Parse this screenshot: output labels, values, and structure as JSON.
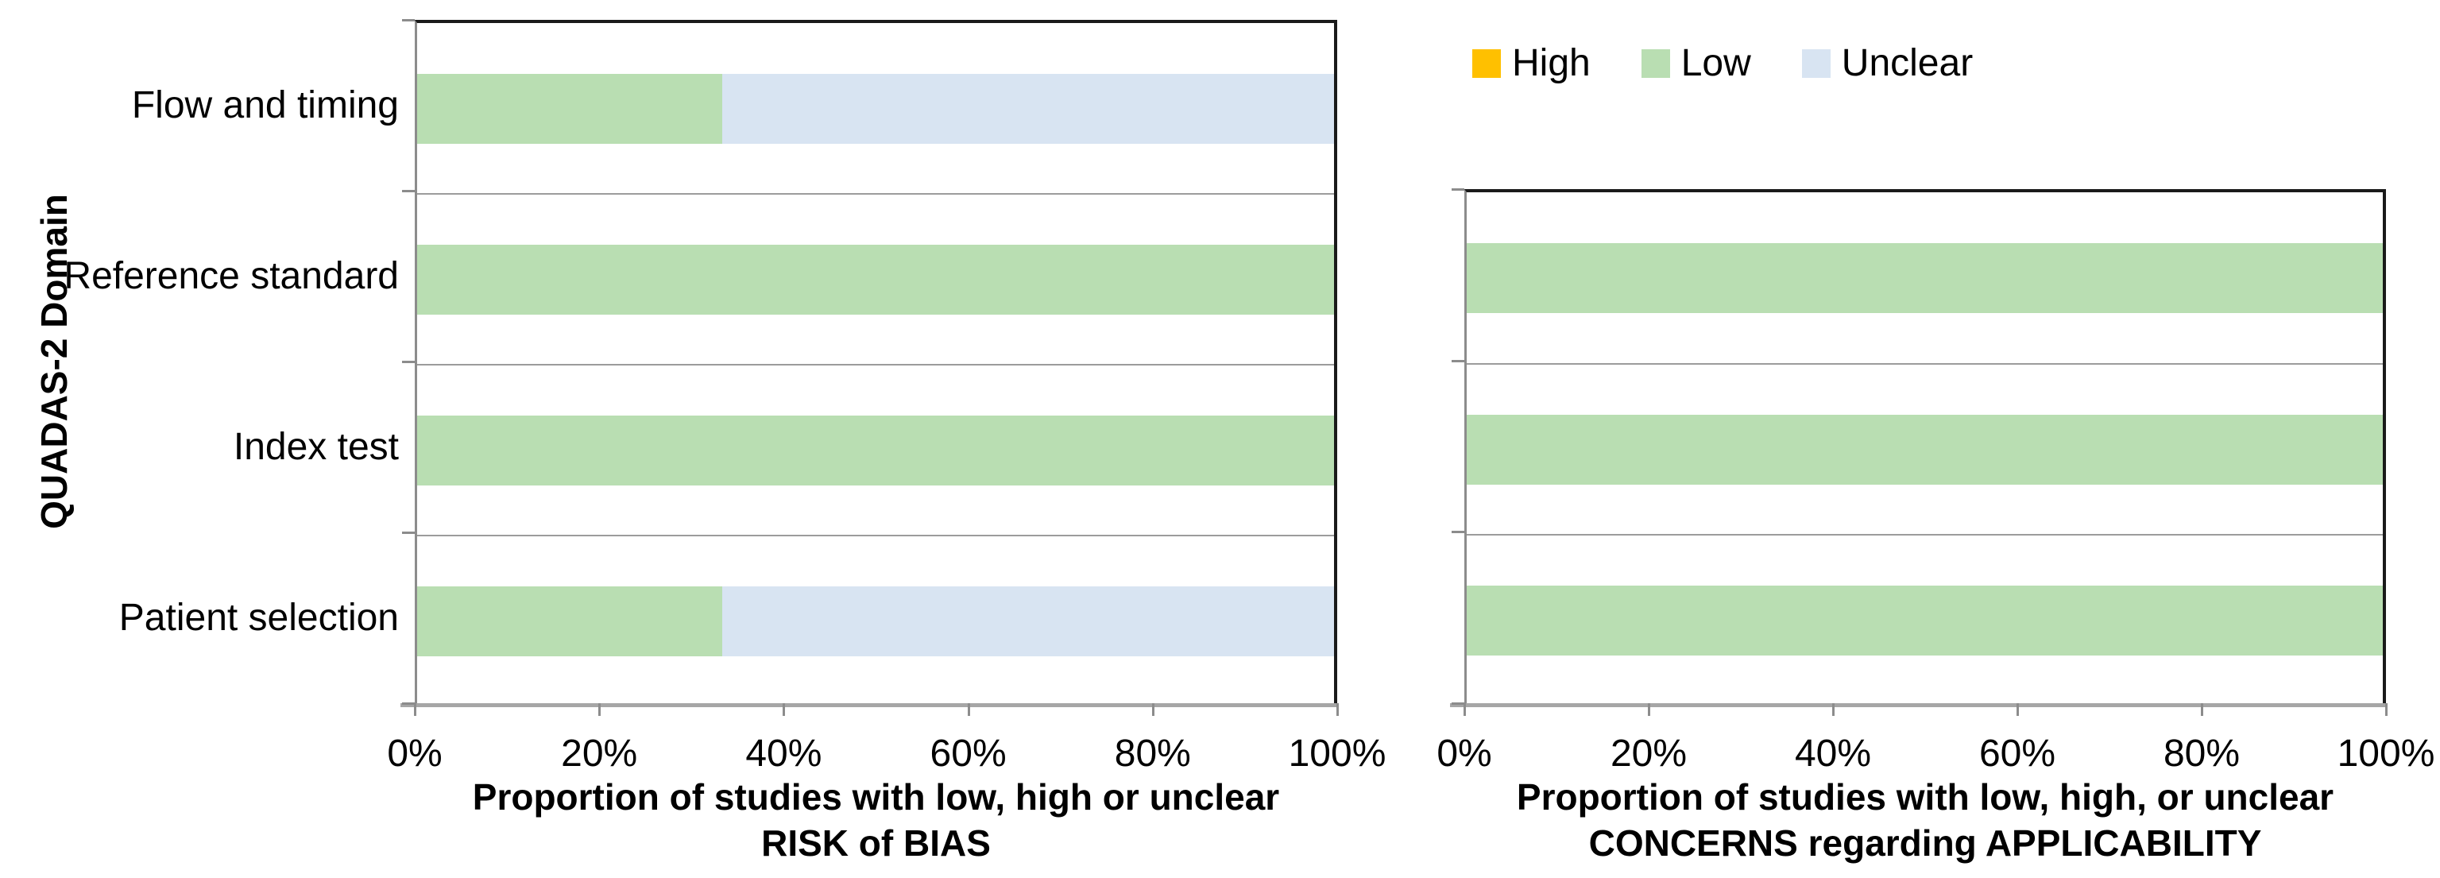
{
  "palette": {
    "high": "#FFC000",
    "low": "#B9DEB2",
    "unclear": "#D8E4F2",
    "axis_line": "#A6A6A6",
    "tick": "#8C8C8C",
    "gridline": "#9C9C9C",
    "plot_border_dark": "#1A1A1A",
    "plot_border_light": "#8C8C8C",
    "text": "#000000",
    "background": "#FFFFFF"
  },
  "legend": {
    "position": "top-center-right",
    "items": [
      {
        "key": "high",
        "label": "High"
      },
      {
        "key": "low",
        "label": "Low"
      },
      {
        "key": "unclear",
        "label": "Unclear"
      }
    ]
  },
  "chart_data": [
    {
      "type": "bar",
      "orientation": "horizontal",
      "stacked": true,
      "title": "",
      "xlabel_lines": [
        "Proportion of studies with low, high or unclear",
        "RISK of BIAS"
      ],
      "ylabel": "QUADAS-2 Domain",
      "categories_top_to_bottom": [
        "Flow and timing",
        "Reference standard",
        "Index test",
        "Patient selection"
      ],
      "x_tick_labels": [
        "0%",
        "20%",
        "40%",
        "60%",
        "80%",
        "100%"
      ],
      "xlim_percent": [
        0,
        100
      ],
      "grid": "horizontal-row-separators",
      "series": [
        {
          "name": "High",
          "key": "high",
          "values_percent": [
            0,
            0,
            0,
            0
          ]
        },
        {
          "name": "Low",
          "key": "low",
          "values_percent": [
            33.3,
            100,
            100,
            33.3
          ]
        },
        {
          "name": "Unclear",
          "key": "unclear",
          "values_percent": [
            66.7,
            0,
            0,
            66.7
          ]
        }
      ]
    },
    {
      "type": "bar",
      "orientation": "horizontal",
      "stacked": true,
      "title": "",
      "xlabel_lines": [
        "Proportion of studies with low, high, or unclear",
        "CONCERNS regarding APPLICABILITY"
      ],
      "ylabel": "",
      "categories_top_to_bottom": [
        "Reference standard",
        "Index test",
        "Patient selection"
      ],
      "x_tick_labels": [
        "0%",
        "20%",
        "40%",
        "60%",
        "80%",
        "100%"
      ],
      "xlim_percent": [
        0,
        100
      ],
      "grid": "horizontal-row-separators",
      "series": [
        {
          "name": "High",
          "key": "high",
          "values_percent": [
            0,
            0,
            0
          ]
        },
        {
          "name": "Low",
          "key": "low",
          "values_percent": [
            100,
            100,
            100
          ]
        },
        {
          "name": "Unclear",
          "key": "unclear",
          "values_percent": [
            0,
            0,
            0
          ]
        }
      ]
    }
  ]
}
